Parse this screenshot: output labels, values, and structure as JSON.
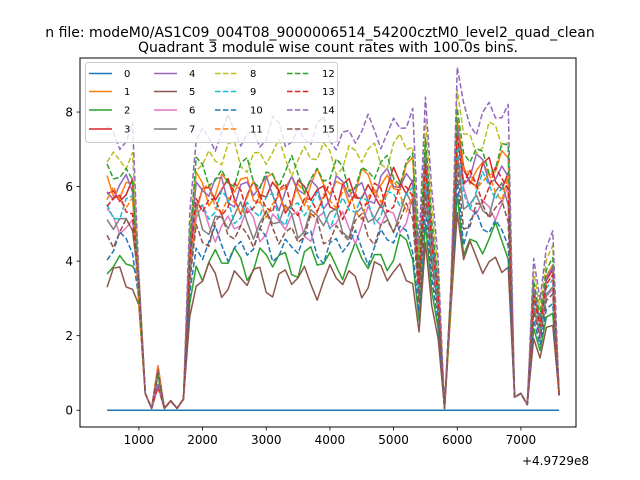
{
  "figure": {
    "suptitle": "n file: modeM0/AS1C09_004T08_9000006514_54200cztM0_level2_quad_clean",
    "title": "Quadrant 3 module wise count rates with 100.0s bins.",
    "offset_text": "+4.9729e8"
  },
  "chart_data": {
    "type": "line",
    "title": "Quadrant 3 module wise count rates with 100.0s bins.",
    "xlabel": "",
    "ylabel": "",
    "xlim": [
      75,
      7865
    ],
    "ylim": [
      -0.45,
      9.45
    ],
    "x_offset": 497290000,
    "xticks": [
      1000,
      2000,
      3000,
      4000,
      5000,
      6000,
      7000
    ],
    "yticks": [
      0,
      2,
      4,
      6,
      8
    ],
    "xtick_labels": [
      "1000",
      "2000",
      "3000",
      "4000",
      "5000",
      "6000",
      "7000"
    ],
    "ytick_labels": [
      "0",
      "2",
      "4",
      "6",
      "8"
    ],
    "grid": false,
    "legend": {
      "location": "top-left",
      "columns": 4
    },
    "x": [
      500,
      600,
      700,
      800,
      900,
      1000,
      1100,
      1200,
      1300,
      1400,
      1500,
      1600,
      1700,
      1800,
      1900,
      2000,
      2100,
      2200,
      2300,
      2400,
      2500,
      2600,
      2700,
      2800,
      2900,
      3000,
      3100,
      3200,
      3300,
      3400,
      3500,
      3600,
      3700,
      3800,
      3900,
      4000,
      4100,
      4200,
      4300,
      4400,
      4500,
      4600,
      4700,
      4800,
      4900,
      5000,
      5100,
      5200,
      5300,
      5400,
      5500,
      5600,
      5700,
      5800,
      5900,
      6000,
      6100,
      6200,
      6300,
      6400,
      6500,
      6600,
      6700,
      6800,
      6900,
      7000,
      7100,
      7200,
      7300,
      7400,
      7500,
      7600
    ],
    "series": [
      {
        "name": "0",
        "color": "#1f77b4",
        "dash": "solid",
        "level": 0.0,
        "pattern": "zero"
      },
      {
        "name": "1",
        "color": "#ff7f0e",
        "dash": "solid",
        "level": 6.0,
        "pattern": "normal"
      },
      {
        "name": "2",
        "color": "#2ca02c",
        "dash": "solid",
        "level": 4.0,
        "pattern": "normal"
      },
      {
        "name": "3",
        "color": "#d62728",
        "dash": "solid",
        "level": 5.8,
        "pattern": "normal"
      },
      {
        "name": "4",
        "color": "#9467bd",
        "dash": "solid",
        "level": 5.9,
        "pattern": "normal"
      },
      {
        "name": "5",
        "color": "#8c564b",
        "dash": "solid",
        "level": 3.5,
        "pattern": "normal"
      },
      {
        "name": "6",
        "color": "#e377c2",
        "dash": "solid",
        "level": 5.0,
        "pattern": "normal"
      },
      {
        "name": "7",
        "color": "#7f7f7f",
        "dash": "solid",
        "level": 5.1,
        "pattern": "normal"
      },
      {
        "name": "8",
        "color": "#bcbd22",
        "dash": "dashed",
        "level": 6.8,
        "pattern": "normal"
      },
      {
        "name": "9",
        "color": "#17becf",
        "dash": "dashed",
        "level": 5.4,
        "pattern": "normal"
      },
      {
        "name": "10",
        "color": "#1f77b4",
        "dash": "dashed",
        "level": 4.4,
        "pattern": "normal"
      },
      {
        "name": "11",
        "color": "#ff7f0e",
        "dash": "dashed",
        "level": 5.6,
        "pattern": "normal"
      },
      {
        "name": "12",
        "color": "#2ca02c",
        "dash": "dashed",
        "level": 6.3,
        "pattern": "normal"
      },
      {
        "name": "13",
        "color": "#d62728",
        "dash": "dashed",
        "level": 5.6,
        "pattern": "normal"
      },
      {
        "name": "14",
        "color": "#9467bd",
        "dash": "dashed",
        "level": 7.4,
        "pattern": "normal"
      },
      {
        "name": "15",
        "color": "#8c564b",
        "dash": "dashed",
        "level": 4.8,
        "pattern": "normal"
      }
    ]
  }
}
